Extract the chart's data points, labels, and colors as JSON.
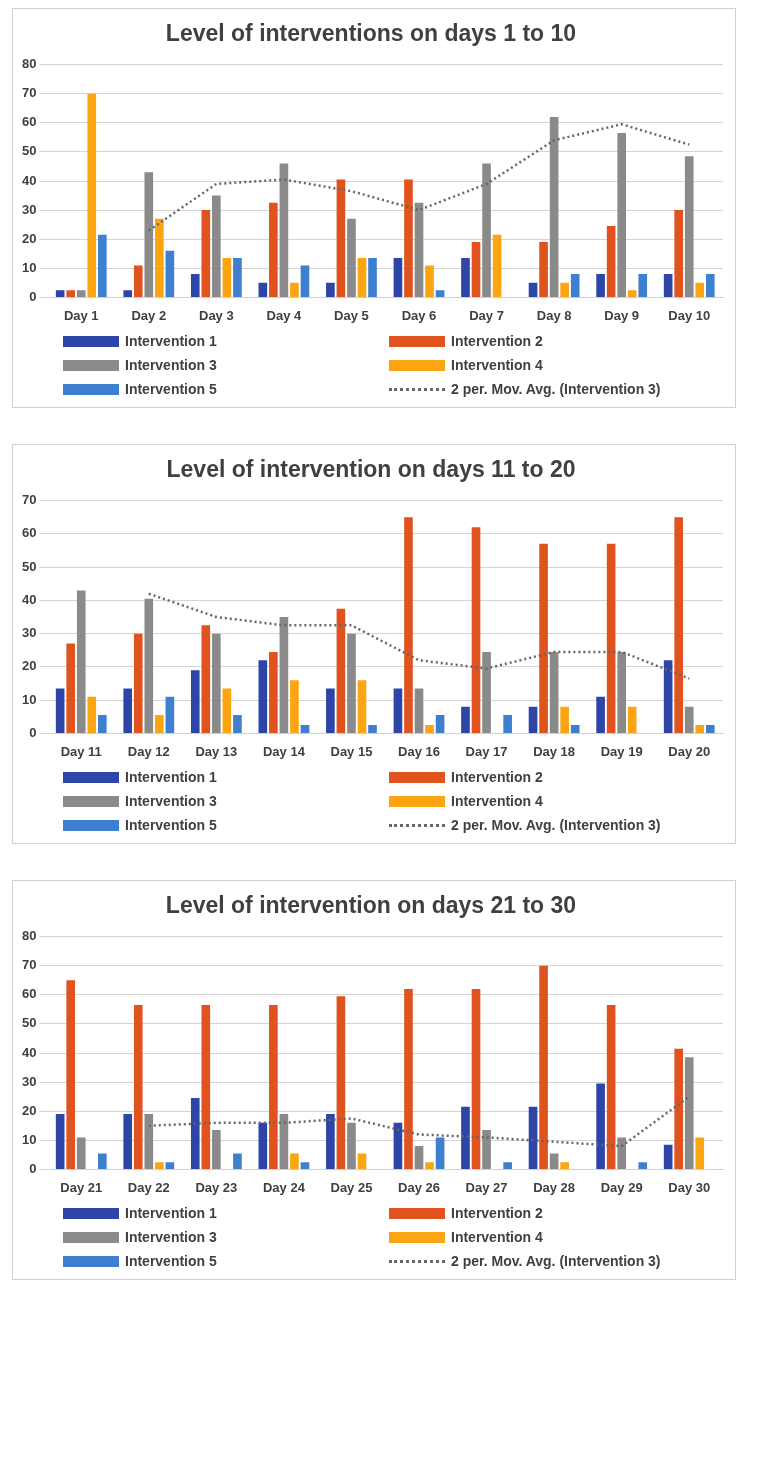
{
  "chart_data": [
    {
      "type": "bar",
      "title": "Level of interventions on days 1 to 10",
      "categories": [
        "Day 1",
        "Day 2",
        "Day 3",
        "Day 4",
        "Day 5",
        "Day 6",
        "Day 7",
        "Day 8",
        "Day 9",
        "Day 10"
      ],
      "ylim": [
        0,
        80
      ],
      "yticks": [
        0,
        10,
        20,
        30,
        40,
        50,
        60,
        70,
        80
      ],
      "grid": "y",
      "legend": "bottom",
      "series": [
        {
          "name": "Intervention 1",
          "color": "#2e45a8",
          "values": [
            2.5,
            2.5,
            8,
            5,
            5,
            13.5,
            13.5,
            5,
            8,
            8
          ]
        },
        {
          "name": "Intervention 2",
          "color": "#e0521e",
          "values": [
            2.5,
            11,
            30,
            32.5,
            40.5,
            40.5,
            19,
            19,
            24.5,
            30
          ]
        },
        {
          "name": "Intervention 3",
          "color": "#8a8a8a",
          "values": [
            2.5,
            43,
            35,
            46,
            27,
            32.5,
            46,
            62,
            56.5,
            48.5
          ]
        },
        {
          "name": "Intervention 4",
          "color": "#fca513",
          "values": [
            70,
            27,
            13.5,
            5,
            13.5,
            11,
            21.5,
            5,
            2.5,
            5
          ]
        },
        {
          "name": "Intervention 5",
          "color": "#3f7fd0",
          "values": [
            21.5,
            16,
            13.5,
            11,
            13.5,
            2.5,
            null,
            8,
            8,
            8
          ]
        },
        {
          "name": "2 per. Mov. Avg. (Intervention 3)",
          "type": "line",
          "line_style": "dotted",
          "color": "#666666",
          "values": [
            null,
            23,
            39,
            40.5,
            36.5,
            30,
            39,
            54,
            59.5,
            52.5
          ]
        }
      ]
    },
    {
      "type": "bar",
      "title": "Level of intervention on days 11 to 20",
      "categories": [
        "Day 11",
        "Day 12",
        "Day 13",
        "Day 14",
        "Day 15",
        "Day 16",
        "Day 17",
        "Day 18",
        "Day 19",
        "Day 20"
      ],
      "ylim": [
        0,
        70
      ],
      "yticks": [
        0,
        10,
        20,
        30,
        40,
        50,
        60,
        70
      ],
      "grid": "y",
      "legend": "bottom",
      "series": [
        {
          "name": "Intervention 1",
          "color": "#2e45a8",
          "values": [
            13.5,
            13.5,
            19,
            22,
            13.5,
            13.5,
            8,
            8,
            11,
            22
          ]
        },
        {
          "name": "Intervention 2",
          "color": "#e0521e",
          "values": [
            27,
            30,
            32.5,
            24.5,
            37.5,
            65,
            62,
            57,
            57,
            65
          ]
        },
        {
          "name": "Intervention 3",
          "color": "#8a8a8a",
          "values": [
            43,
            40.5,
            30,
            35,
            30,
            13.5,
            24.5,
            24.5,
            24.5,
            8
          ]
        },
        {
          "name": "Intervention 4",
          "color": "#fca513",
          "values": [
            11,
            5.5,
            13.5,
            16,
            16,
            2.5,
            null,
            8,
            8,
            2.5
          ]
        },
        {
          "name": "Intervention 5",
          "color": "#3f7fd0",
          "values": [
            5.5,
            11,
            5.5,
            2.5,
            2.5,
            5.5,
            5.5,
            2.5,
            null,
            2.5
          ]
        },
        {
          "name": "2 per. Mov. Avg. (Intervention 3)",
          "type": "line",
          "line_style": "dotted",
          "color": "#666666",
          "values": [
            null,
            42,
            35,
            32.5,
            32.5,
            22,
            19.5,
            24.5,
            24.5,
            16.5
          ]
        }
      ]
    },
    {
      "type": "bar",
      "title": "Level of intervention on days 21 to 30",
      "categories": [
        "Day 21",
        "Day 22",
        "Day 23",
        "Day 24",
        "Day 25",
        "Day 26",
        "Day 27",
        "Day 28",
        "Day 29",
        "Day 30"
      ],
      "ylim": [
        0,
        80
      ],
      "yticks": [
        0,
        10,
        20,
        30,
        40,
        50,
        60,
        70,
        80
      ],
      "grid": "y",
      "legend": "bottom",
      "series": [
        {
          "name": "Intervention 1",
          "color": "#2e45a8",
          "values": [
            19,
            19,
            24.5,
            16,
            19,
            16,
            21.5,
            21.5,
            29.5,
            8.5
          ]
        },
        {
          "name": "Intervention 2",
          "color": "#e0521e",
          "values": [
            65,
            56.5,
            56.5,
            56.5,
            59.5,
            62,
            62,
            70,
            56.5,
            41.5
          ]
        },
        {
          "name": "Intervention 3",
          "color": "#8a8a8a",
          "values": [
            11,
            19,
            13.5,
            19,
            16,
            8,
            13.5,
            5.5,
            11,
            38.5
          ]
        },
        {
          "name": "Intervention 4",
          "color": "#fca513",
          "values": [
            null,
            2.5,
            null,
            5.5,
            5.5,
            2.5,
            null,
            2.5,
            null,
            11
          ]
        },
        {
          "name": "Intervention 5",
          "color": "#3f7fd0",
          "values": [
            5.5,
            2.5,
            5.5,
            2.5,
            null,
            11,
            2.5,
            null,
            2.5,
            null
          ]
        },
        {
          "name": "2 per. Mov. Avg. (Intervention 3)",
          "type": "line",
          "line_style": "dotted",
          "color": "#666666",
          "values": [
            null,
            15,
            16,
            16,
            17.5,
            12,
            11,
            9.5,
            8,
            25
          ]
        }
      ]
    }
  ]
}
